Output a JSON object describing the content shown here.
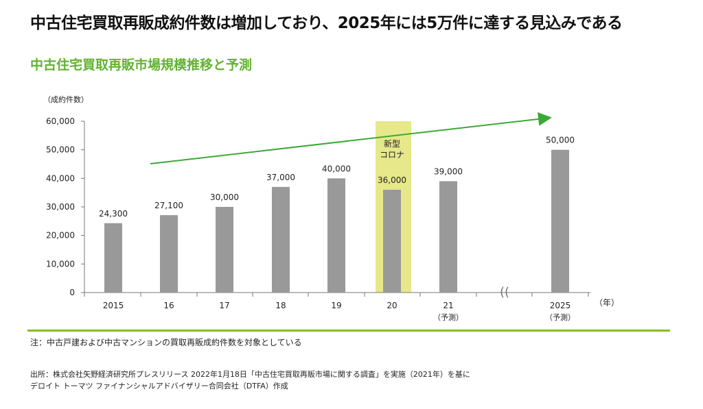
{
  "headline": "中古住宅買取再販成約件数は増加しており、2025年には5万件に達する見込みである",
  "subtitle": "中古住宅買取再販市場規模推移と予測",
  "chart_data": {
    "type": "bar",
    "ylabel": "（成約件数）",
    "xunit": "（年）",
    "ylim": [
      0,
      60000
    ],
    "yticks": [
      "0",
      "10,000",
      "20,000",
      "30,000",
      "40,000",
      "50,000",
      "60,000"
    ],
    "categories": [
      "2015",
      "16",
      "17",
      "18",
      "19",
      "20",
      "21",
      "2025"
    ],
    "category_sub": [
      "",
      "",
      "",
      "",
      "",
      "",
      "（予測）",
      "（予測）"
    ],
    "values": [
      24300,
      27100,
      30000,
      37000,
      40000,
      36000,
      39000,
      50000
    ],
    "value_labels": [
      "24,300",
      "27,100",
      "30,000",
      "37,000",
      "40,000",
      "36,000",
      "39,000",
      "50,000"
    ],
    "highlight": {
      "category": "20",
      "label_line1": "新型",
      "label_line2": "コロナ",
      "color": "#e6e88a"
    },
    "axis_break_symbol": "((",
    "bar_color": "#999999",
    "trend_color": "#3aaa35"
  },
  "note": "注：中古戸建および中古マンションの買取再販成約件数を対象としている",
  "source_line1": "出所：株式会社矢野経済研究所プレスリリース 2022年1月18日「中古住宅買取再販市場に関する調査」を実施（2021年）を基に",
  "source_line2": "デロイト トーマツ ファイナンシャルアドバイザリー合同会社（DTFA）作成",
  "colors": {
    "accent": "#62b22f",
    "divider": "#86bc25"
  }
}
